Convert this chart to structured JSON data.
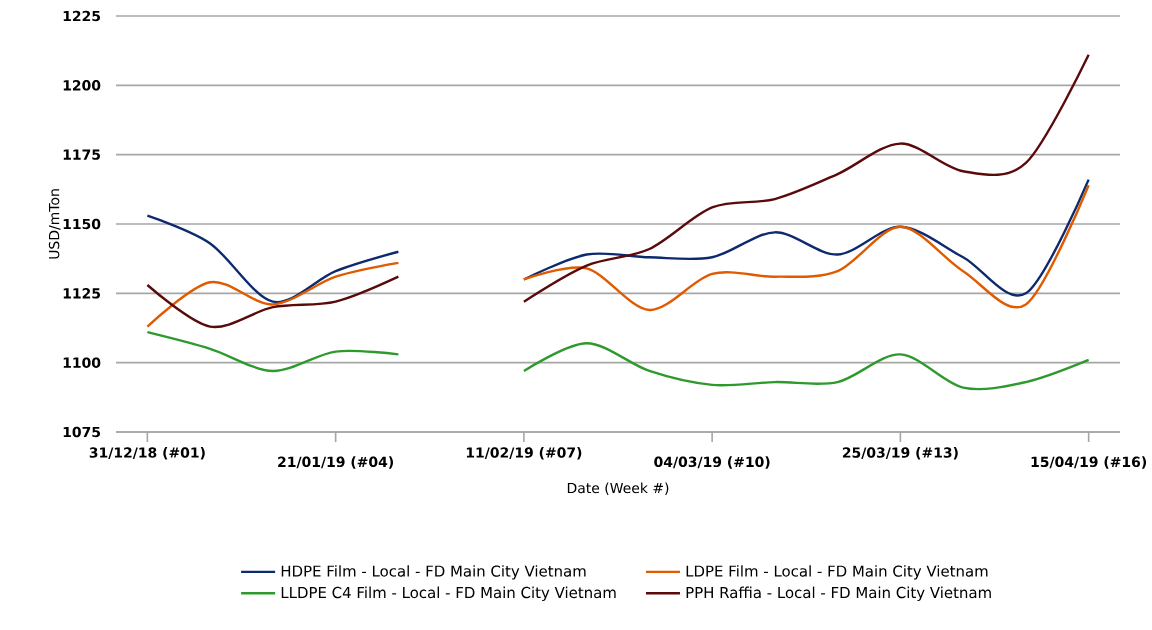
{
  "chart_data": {
    "type": "line",
    "categories": [
      "31/12/18 (#01)",
      null,
      null,
      "21/01/19 (#04)",
      null,
      null,
      "11/02/19 (#07)",
      null,
      null,
      "04/03/19 (#10)",
      null,
      null,
      "25/03/19 (#13)",
      null,
      null,
      "15/04/19 (#16)"
    ],
    "xlabel": "Date (Week #)",
    "ylabel": "USD/mTon",
    "ylim": [
      1075,
      1225
    ],
    "yticks": [
      1075,
      1100,
      1125,
      1150,
      1175,
      1200,
      1225
    ],
    "grid": "y",
    "legend": "bottom",
    "series": [
      {
        "name": "HDPE Film - Local - FD Main City Vietnam",
        "color": "#0d2a6e",
        "values": [
          1153,
          1143,
          1122,
          1133,
          1140,
          null,
          1130,
          1139,
          1138,
          1138,
          1147,
          1139,
          1149,
          1138,
          1125,
          1166
        ]
      },
      {
        "name": "LDPE Film - Local - FD Main City Vietnam",
        "color": "#e05a00",
        "values": [
          1113,
          1129,
          1121,
          1131,
          1136,
          null,
          1130,
          1134,
          1119,
          1132,
          1131,
          1133,
          1149,
          1133,
          1121,
          1164
        ]
      },
      {
        "name": "LLDPE C4 Film - Local - FD Main City Vietnam",
        "color": "#2e9a2e",
        "values": [
          1111,
          1105,
          1097,
          1104,
          1103,
          null,
          1097,
          1107,
          1097,
          1092,
          1093,
          1093,
          1103,
          1091,
          1093,
          1101
        ]
      },
      {
        "name": "PPH Raffia - Local - FD Main City Vietnam",
        "color": "#5a0a0a",
        "values": [
          1128,
          1113,
          1120,
          1122,
          1131,
          null,
          1122,
          1135,
          1141,
          1156,
          1159,
          1168,
          1179,
          1169,
          1172,
          1211
        ]
      }
    ]
  }
}
